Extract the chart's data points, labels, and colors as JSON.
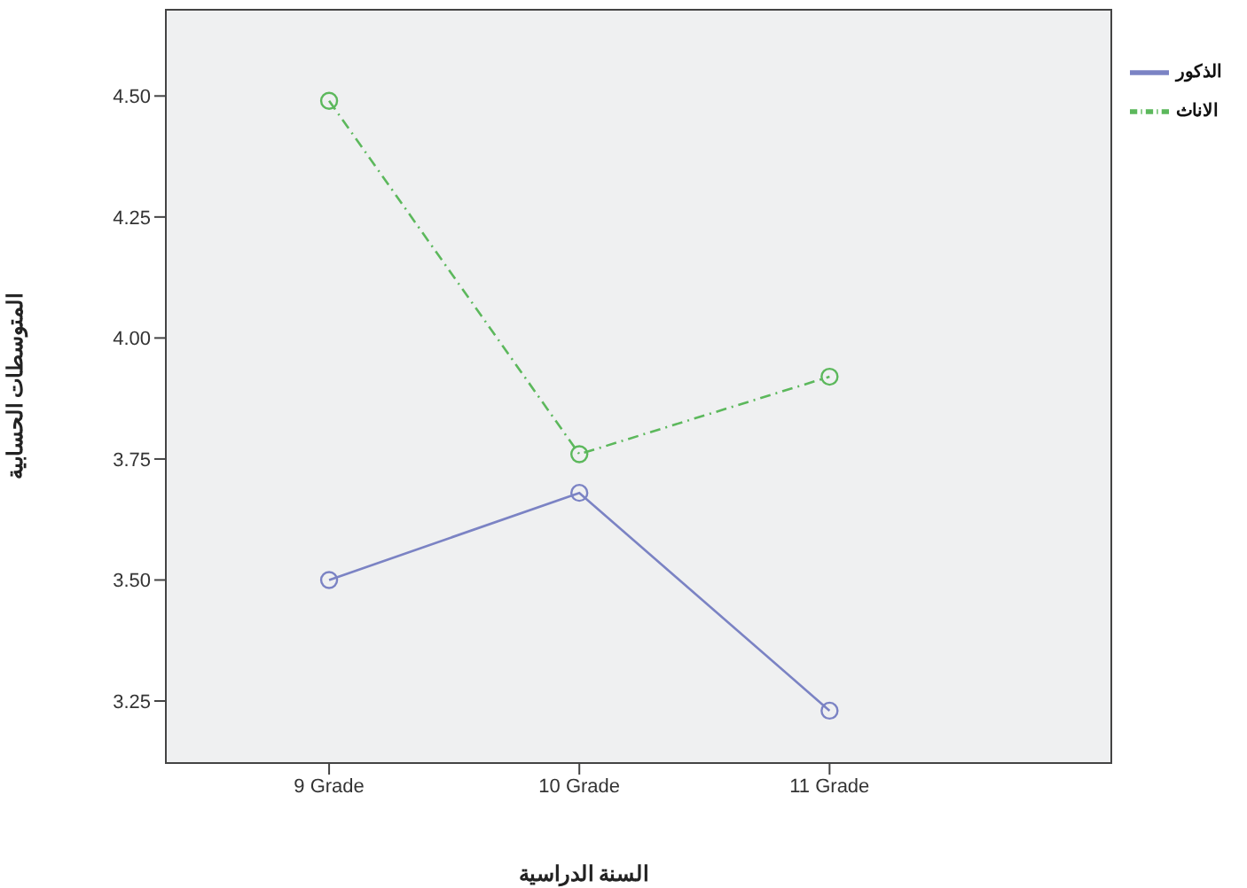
{
  "chart_data": {
    "type": "line",
    "xlabel": "السنة الدراسية",
    "ylabel": "المتوسطات الحسابية",
    "categories": [
      "9 Grade",
      "10 Grade",
      "11 Grade"
    ],
    "series": [
      {
        "name": "الذكور",
        "color": "#7b83c4",
        "values": [
          3.5,
          3.68,
          3.23
        ],
        "line_style": "solid"
      },
      {
        "name": "الاناث",
        "color": "#5cb85c",
        "values": [
          4.49,
          3.76,
          3.92
        ],
        "line_style": "dashed"
      }
    ],
    "ylim": [
      3.12,
      4.68
    ],
    "yticks": [
      3.25,
      {
        "value": 3.5,
        "label": "3.50"
      },
      3.75,
      {
        "value": 4,
        "label": "4.00"
      },
      4.25,
      {
        "value": 4.5,
        "label": "4.50"
      }
    ],
    "marker": "circle",
    "legend": "top right",
    "grid": false
  }
}
